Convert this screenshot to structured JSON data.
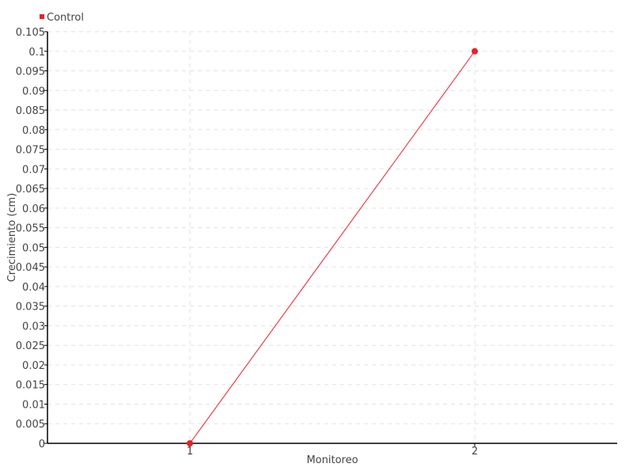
{
  "chart_data": {
    "type": "line",
    "title": "",
    "xlabel": "Monitoreo",
    "ylabel": "Crecimiento (cm)",
    "x_categories": [
      "1",
      "2"
    ],
    "xlim": [
      0.5,
      2.5
    ],
    "ylim": [
      0,
      0.105
    ],
    "y_ticks": [
      0,
      0.005,
      0.01,
      0.015,
      0.02,
      0.025,
      0.03,
      0.035,
      0.04,
      0.045,
      0.05,
      0.055,
      0.06,
      0.065,
      0.07,
      0.075,
      0.08,
      0.085,
      0.09,
      0.095,
      0.1,
      0.105
    ],
    "grid": true,
    "legend_position": "top-left",
    "series": [
      {
        "name": "Control",
        "color": "#e8202a",
        "x": [
          1,
          2
        ],
        "y": [
          0,
          0.1
        ]
      }
    ]
  }
}
